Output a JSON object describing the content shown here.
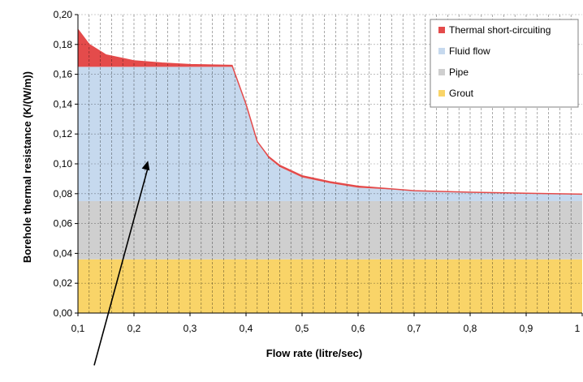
{
  "chart_data": {
    "type": "area",
    "title": "",
    "xlabel": "Flow rate (litre/sec)",
    "ylabel": "Borehole thermal resistance (K/(W/m))",
    "xlim": [
      0.1,
      1.0
    ],
    "ylim": [
      0.0,
      0.2
    ],
    "x_ticks": [
      "0,1",
      "0,2",
      "0,3",
      "0,4",
      "0,5",
      "0,6",
      "0,7",
      "0,8",
      "0,9",
      "1"
    ],
    "y_ticks": [
      "0,00",
      "0,02",
      "0,04",
      "0,06",
      "0,08",
      "0,10",
      "0,12",
      "0,14",
      "0,16",
      "0,18",
      "0,20"
    ],
    "grid": "vertical dashed and horizontal dashed",
    "legend_position": "top-right",
    "stacking": "stacked",
    "series": [
      {
        "name": "Grout",
        "color": "#f9d468",
        "x": [
          0.1,
          1.0
        ],
        "y": [
          0.036,
          0.036
        ]
      },
      {
        "name": "Pipe",
        "color": "#cfcfcf",
        "x": [
          0.1,
          1.0
        ],
        "y": [
          0.075,
          0.075
        ]
      },
      {
        "name": "Fluid flow",
        "color": "#c6d9ee",
        "x": [
          0.1,
          0.375,
          0.4,
          0.42,
          0.44,
          0.46,
          0.5,
          0.55,
          0.6,
          0.7,
          0.8,
          0.9,
          1.0
        ],
        "y": [
          0.165,
          0.165,
          0.14,
          0.115,
          0.104,
          0.098,
          0.091,
          0.087,
          0.084,
          0.082,
          0.081,
          0.08,
          0.0795
        ]
      },
      {
        "name": "Thermal short-circuiting",
        "color": "#e44b4b",
        "x": [
          0.1,
          0.12,
          0.15,
          0.2,
          0.25,
          0.3,
          0.375,
          0.4,
          0.42,
          0.44,
          0.46,
          0.5,
          0.55,
          0.6,
          0.7,
          0.8,
          0.9,
          1.0
        ],
        "y": [
          0.19,
          0.18,
          0.173,
          0.169,
          0.1675,
          0.1665,
          0.166,
          0.14,
          0.115,
          0.105,
          0.099,
          0.092,
          0.088,
          0.085,
          0.082,
          0.081,
          0.0803,
          0.0797
        ]
      }
    ],
    "legend": [
      "Thermal short-circuiting",
      "Fluid flow",
      "Pipe",
      "Grout"
    ],
    "annotation": {
      "type": "arrow",
      "from": [
        0.1,
        -0.035
      ],
      "to": [
        0.225,
        0.102
      ]
    }
  }
}
